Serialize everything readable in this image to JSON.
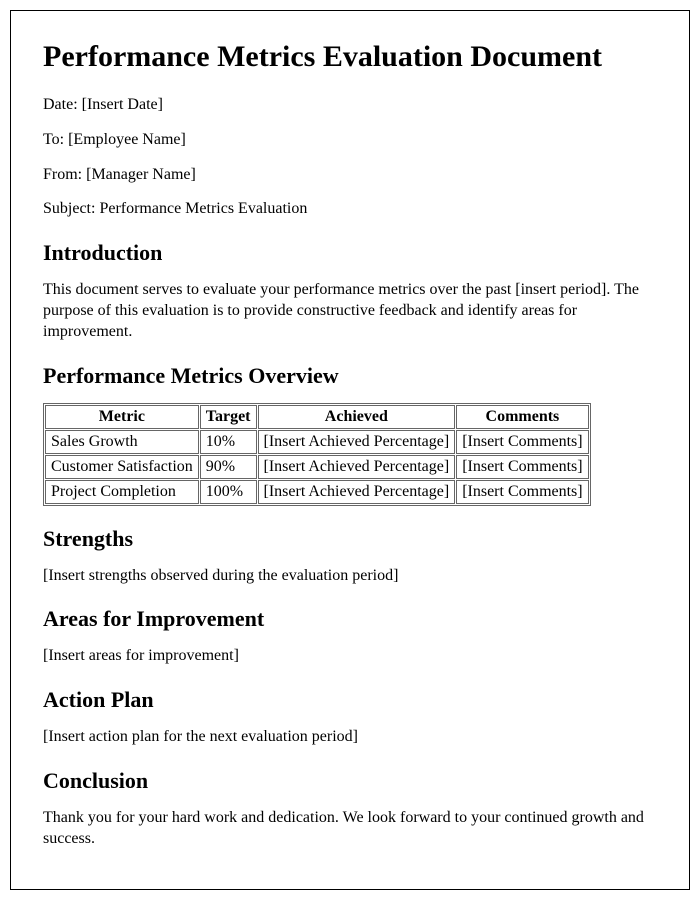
{
  "title": "Performance Metrics Evaluation Document",
  "meta": {
    "date": "Date: [Insert Date]",
    "to": "To: [Employee Name]",
    "from": "From: [Manager Name]",
    "subject": "Subject: Performance Metrics Evaluation"
  },
  "sections": {
    "introduction": {
      "heading": "Introduction",
      "body": "This document serves to evaluate your performance metrics over the past [insert period]. The purpose of this evaluation is to provide constructive feedback and identify areas for improvement."
    },
    "overview": {
      "heading": "Performance Metrics Overview",
      "table": {
        "columns": [
          "Metric",
          "Target",
          "Achieved",
          "Comments"
        ],
        "rows": [
          [
            "Sales Growth",
            "10%",
            "[Insert Achieved Percentage]",
            "[Insert Comments]"
          ],
          [
            "Customer Satisfaction",
            "90%",
            "[Insert Achieved Percentage]",
            "[Insert Comments]"
          ],
          [
            "Project Completion",
            "100%",
            "[Insert Achieved Percentage]",
            "[Insert Comments]"
          ]
        ]
      }
    },
    "strengths": {
      "heading": "Strengths",
      "body": "[Insert strengths observed during the evaluation period]"
    },
    "improvement": {
      "heading": "Areas for Improvement",
      "body": "[Insert areas for improvement]"
    },
    "action": {
      "heading": "Action Plan",
      "body": "[Insert action plan for the next evaluation period]"
    },
    "conclusion": {
      "heading": "Conclusion",
      "body": "Thank you for your hard work and dedication. We look forward to your continued growth and success."
    }
  }
}
